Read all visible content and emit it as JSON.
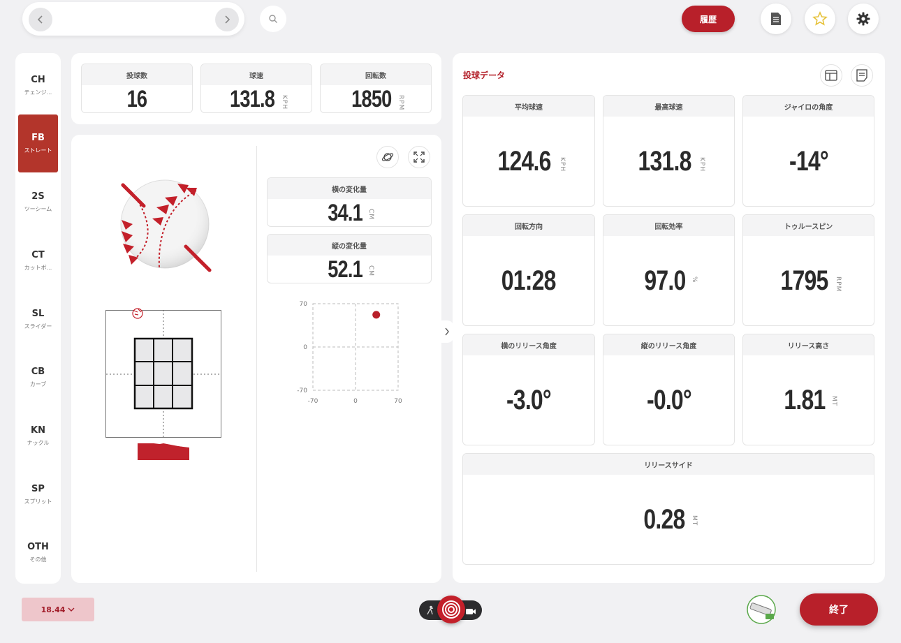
{
  "topbar": {
    "history_label": "履歴"
  },
  "sidebar": {
    "items": [
      {
        "code": "CH",
        "name": "チェンジ..."
      },
      {
        "code": "FB",
        "name": "ストレート"
      },
      {
        "code": "2S",
        "name": "ツーシーム"
      },
      {
        "code": "CT",
        "name": "カットボ..."
      },
      {
        "code": "SL",
        "name": "スライダー"
      },
      {
        "code": "CB",
        "name": "カーブ"
      },
      {
        "code": "KN",
        "name": "ナックル"
      },
      {
        "code": "SP",
        "name": "スプリット"
      },
      {
        "code": "OTH",
        "name": "その他"
      }
    ],
    "active": "FB"
  },
  "summary": {
    "count": {
      "label": "投球数",
      "value": "16"
    },
    "speed": {
      "label": "球速",
      "value": "131.8",
      "unit": "KPH"
    },
    "spin": {
      "label": "回転数",
      "value": "1850",
      "unit": "RPM"
    }
  },
  "movement": {
    "horizontal": {
      "label": "横の変化量",
      "value": "34.1",
      "unit": "CM"
    },
    "vertical": {
      "label": "縦の変化量",
      "value": "52.1",
      "unit": "CM"
    }
  },
  "chart_data": {
    "type": "scatter",
    "xlim": [
      -70,
      70
    ],
    "ylim": [
      -70,
      70
    ],
    "x_ticks": [
      "-70",
      "0",
      "70"
    ],
    "y_ticks": [
      "70",
      "0",
      "-70"
    ],
    "points": [
      {
        "x": 34.1,
        "y": 52.1
      }
    ],
    "point_color": "#b8202a"
  },
  "pitch_data": {
    "title": "投球データ",
    "cells": [
      {
        "label": "平均球速",
        "value": "124.6",
        "unit": "KPH"
      },
      {
        "label": "最高球速",
        "value": "131.8",
        "unit": "KPH"
      },
      {
        "label": "ジャイロの角度",
        "value": "-14°",
        "unit": ""
      },
      {
        "label": "回転方向",
        "value": "01:28",
        "unit": ""
      },
      {
        "label": "回転効率",
        "value": "97.0",
        "unit": "%"
      },
      {
        "label": "トゥルースピン",
        "value": "1795",
        "unit": "RPM"
      },
      {
        "label": "横のリリース角度",
        "value": "-3.0°",
        "unit": ""
      },
      {
        "label": "縦のリリース角度",
        "value": "-0.0°",
        "unit": ""
      },
      {
        "label": "リリース高さ",
        "value": "1.81",
        "unit": "MT"
      }
    ],
    "wide_cell": {
      "label": "リリースサイド",
      "value": "0.28",
      "unit": "MT"
    }
  },
  "footer": {
    "distance": "18.44",
    "end_label": "終了"
  },
  "colors": {
    "accent": "#b8202a",
    "active_tab": "#b3352b"
  }
}
